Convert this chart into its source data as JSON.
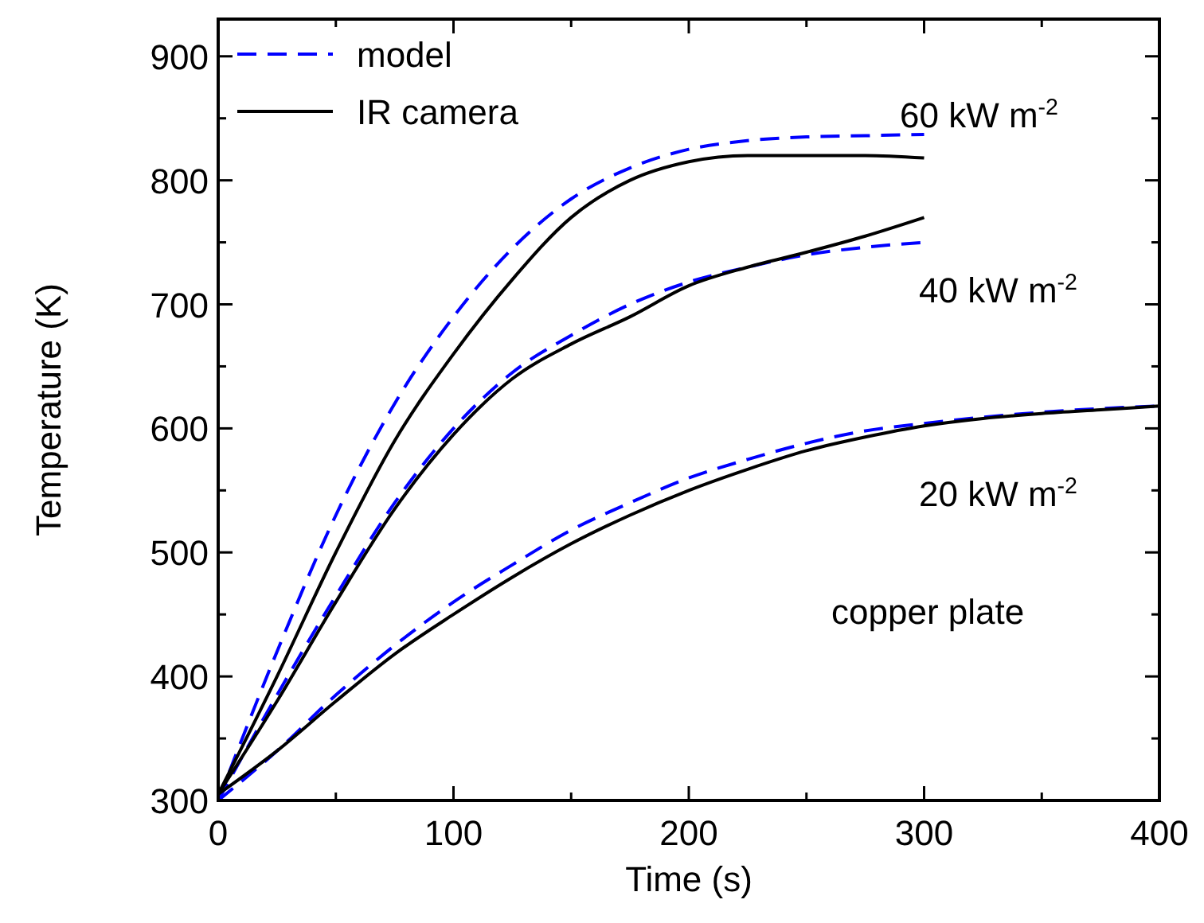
{
  "chart_data": {
    "type": "line",
    "xlabel": "Time (s)",
    "ylabel": "Temperature (K)",
    "xlim": [
      0,
      400
    ],
    "ylim": [
      300,
      930
    ],
    "xticks": [
      0,
      {
        "value": 50,
        "label": null
      },
      100,
      {
        "value": 150,
        "label": null
      },
      200,
      {
        "value": 250,
        "label": null
      },
      300,
      {
        "value": 350,
        "label": null
      },
      400
    ],
    "yticks": [
      300,
      {
        "value": 350,
        "label": null
      },
      400,
      {
        "value": 450,
        "label": null
      },
      500,
      {
        "value": 550,
        "label": null
      },
      600,
      {
        "value": 650,
        "label": null
      },
      700,
      {
        "value": 750,
        "label": null
      },
      800,
      {
        "value": 850,
        "label": null
      },
      900
    ],
    "legend": "top left",
    "grid": false,
    "series": [
      {
        "name": "model",
        "color": "#0000ff",
        "line_style": "dashed",
        "x": [
          0,
          25,
          50,
          75,
          100,
          125,
          150,
          175,
          200,
          225,
          250,
          275,
          300
        ],
        "values": [
          300,
          420,
          530,
          620,
          690,
          745,
          785,
          810,
          825,
          832,
          835,
          836,
          837
        ]
      },
      {
        "name": "IR camera",
        "color": "#000000",
        "line_style": "solid",
        "x": [
          0,
          25,
          50,
          75,
          100,
          125,
          150,
          175,
          200,
          225,
          250,
          275,
          300
        ],
        "values": [
          305,
          400,
          500,
          590,
          660,
          720,
          770,
          800,
          815,
          820,
          820,
          820,
          818
        ]
      },
      {
        "color": "#0000ff",
        "line_style": "dashed",
        "x": [
          0,
          25,
          50,
          75,
          100,
          125,
          150,
          175,
          200,
          225,
          250,
          275,
          300
        ],
        "values": [
          300,
          385,
          465,
          540,
          600,
          645,
          675,
          700,
          718,
          730,
          740,
          746,
          750
        ]
      },
      {
        "color": "#000000",
        "line_style": "solid",
        "x": [
          0,
          25,
          50,
          75,
          100,
          125,
          150,
          175,
          200,
          225,
          250,
          275,
          300
        ],
        "values": [
          305,
          380,
          460,
          535,
          595,
          640,
          668,
          690,
          715,
          730,
          742,
          755,
          770
        ]
      },
      {
        "color": "#0000ff",
        "line_style": "dashed",
        "x": [
          0,
          25,
          50,
          75,
          100,
          125,
          150,
          175,
          200,
          225,
          250,
          275,
          300,
          325,
          350,
          375,
          400
        ],
        "values": [
          300,
          340,
          385,
          425,
          460,
          490,
          518,
          540,
          560,
          575,
          588,
          598,
          604,
          609,
          613,
          616,
          618
        ]
      },
      {
        "color": "#000000",
        "line_style": "solid",
        "x": [
          0,
          25,
          50,
          75,
          100,
          125,
          150,
          175,
          200,
          225,
          250,
          275,
          300,
          325,
          350,
          375,
          400
        ],
        "values": [
          305,
          340,
          380,
          418,
          450,
          480,
          507,
          530,
          550,
          567,
          582,
          593,
          602,
          608,
          612,
          615,
          618
        ]
      }
    ],
    "annotations": [
      "60 kW m$^{-2}$",
      "40 kW m$^{-2}$",
      "20 kW m$^{-2}$",
      "copper plate"
    ]
  }
}
